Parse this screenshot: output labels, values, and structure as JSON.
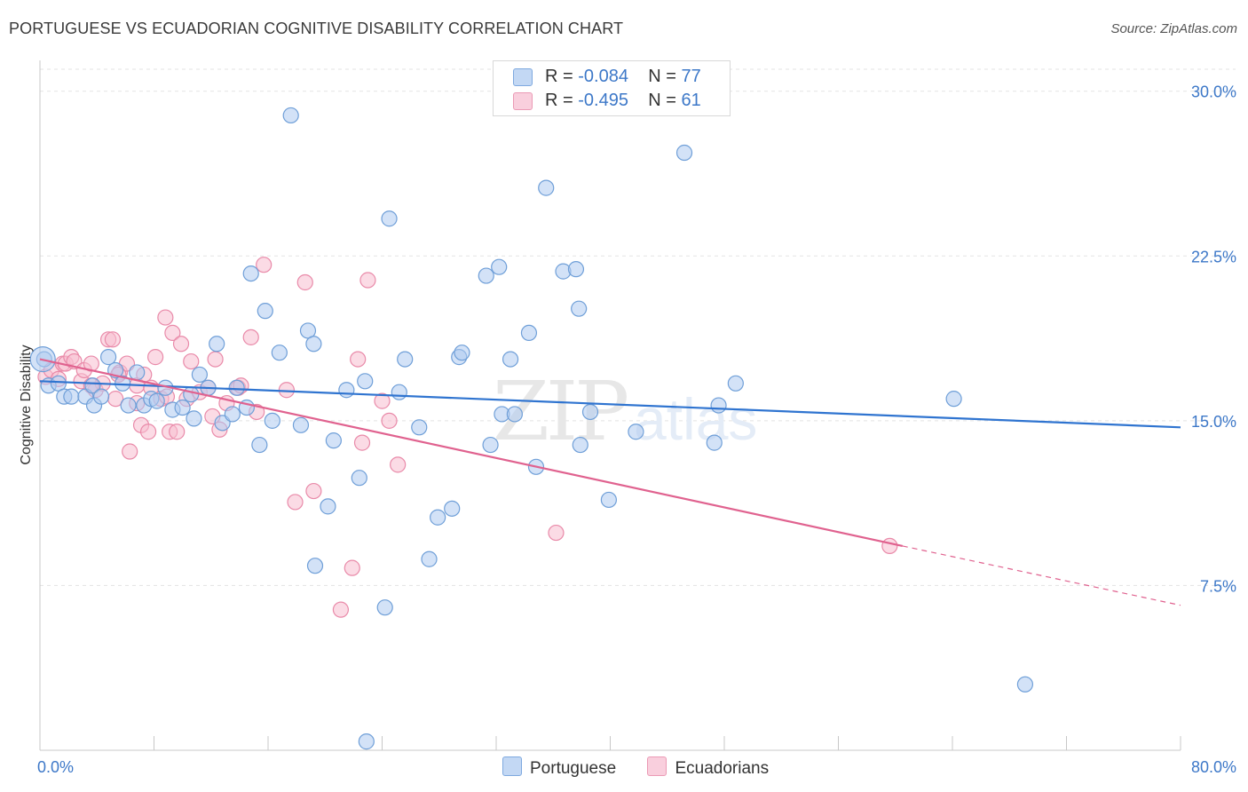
{
  "title": "PORTUGUESE VS ECUADORIAN COGNITIVE DISABILITY CORRELATION CHART",
  "source": "Source: ZipAtlas.com",
  "legend": {
    "rows": [
      {
        "r_label": "R =",
        "r_value": "-0.084",
        "n_label": "N =",
        "n_value": "77"
      },
      {
        "r_label": "R =",
        "r_value": "-0.495",
        "n_label": "N =",
        "n_value": "61"
      }
    ]
  },
  "bottom_legend": [
    "Portuguese",
    "Ecuadorians"
  ],
  "colors": {
    "portuguese_fill": "#aecbf0",
    "portuguese_stroke": "#6f9fd8",
    "portuguese_line": "#2f74d0",
    "ecuadorian_fill": "#f7bdd0",
    "ecuadorian_stroke": "#e98aa9",
    "ecuadorian_line": "#e0628f",
    "tick_text": "#3d78c8",
    "grid": "#e3e3e3"
  },
  "chart_data": {
    "type": "scatter",
    "title": "PORTUGUESE VS ECUADORIAN COGNITIVE DISABILITY CORRELATION CHART",
    "xlabel": "",
    "ylabel": "Cognitive Disability",
    "xlim": [
      0,
      80
    ],
    "ylim": [
      0,
      31
    ],
    "x_tick_labels": [
      "0.0%",
      "80.0%"
    ],
    "y_ticks": [
      7.5,
      15.0,
      22.5,
      30.0
    ],
    "y_tick_labels": [
      "7.5%",
      "15.0%",
      "22.5%",
      "30.0%"
    ],
    "grid": "horizontal dashed",
    "legend_position": "top-center",
    "series": [
      {
        "name": "Portuguese",
        "r": -0.084,
        "n": 77,
        "trend": {
          "x": [
            0,
            80
          ],
          "y": [
            16.8,
            14.7
          ]
        },
        "points": [
          [
            0.3,
            17.8
          ],
          [
            0.6,
            16.6
          ],
          [
            1.3,
            16.7
          ],
          [
            1.7,
            16.1
          ],
          [
            2.2,
            16.1
          ],
          [
            3.2,
            16.1
          ],
          [
            3.7,
            16.6
          ],
          [
            3.8,
            15.7
          ],
          [
            4.3,
            16.1
          ],
          [
            4.8,
            17.9
          ],
          [
            5.3,
            17.3
          ],
          [
            5.8,
            16.7
          ],
          [
            6.2,
            15.7
          ],
          [
            6.8,
            17.2
          ],
          [
            7.3,
            15.7
          ],
          [
            7.8,
            16.0
          ],
          [
            8.2,
            15.9
          ],
          [
            8.8,
            16.5
          ],
          [
            9.3,
            15.5
          ],
          [
            10.0,
            15.6
          ],
          [
            10.6,
            16.2
          ],
          [
            10.8,
            15.1
          ],
          [
            11.2,
            17.1
          ],
          [
            11.8,
            16.5
          ],
          [
            12.4,
            18.5
          ],
          [
            12.8,
            14.9
          ],
          [
            13.5,
            15.3
          ],
          [
            13.8,
            16.5
          ],
          [
            14.5,
            15.6
          ],
          [
            14.8,
            21.7
          ],
          [
            15.4,
            13.9
          ],
          [
            15.8,
            20.0
          ],
          [
            16.3,
            15.0
          ],
          [
            16.8,
            18.1
          ],
          [
            17.6,
            28.9
          ],
          [
            18.3,
            14.8
          ],
          [
            18.8,
            19.1
          ],
          [
            19.2,
            18.5
          ],
          [
            19.3,
            8.4
          ],
          [
            20.2,
            11.1
          ],
          [
            20.6,
            14.1
          ],
          [
            21.5,
            16.4
          ],
          [
            22.4,
            12.4
          ],
          [
            22.8,
            16.8
          ],
          [
            22.9,
            0.4
          ],
          [
            24.2,
            6.5
          ],
          [
            24.5,
            24.2
          ],
          [
            25.2,
            16.3
          ],
          [
            25.6,
            17.8
          ],
          [
            26.6,
            14.7
          ],
          [
            27.3,
            8.7
          ],
          [
            27.9,
            10.6
          ],
          [
            28.9,
            11.0
          ],
          [
            29.4,
            17.9
          ],
          [
            29.6,
            18.1
          ],
          [
            31.3,
            21.6
          ],
          [
            31.6,
            13.9
          ],
          [
            32.2,
            22.0
          ],
          [
            32.4,
            15.3
          ],
          [
            33.0,
            17.8
          ],
          [
            33.3,
            15.3
          ],
          [
            34.3,
            19.0
          ],
          [
            34.8,
            12.9
          ],
          [
            35.5,
            25.6
          ],
          [
            36.7,
            21.8
          ],
          [
            37.8,
            20.1
          ],
          [
            37.9,
            13.9
          ],
          [
            38.6,
            15.4
          ],
          [
            39.9,
            11.4
          ],
          [
            41.8,
            14.5
          ],
          [
            45.2,
            27.2
          ],
          [
            47.3,
            14.0
          ],
          [
            47.6,
            15.7
          ],
          [
            48.8,
            16.7
          ],
          [
            64.1,
            16.0
          ],
          [
            69.1,
            3.0
          ],
          [
            37.6,
            21.9
          ]
        ]
      },
      {
        "name": "Ecuadorians",
        "r": -0.495,
        "n": 61,
        "trend": {
          "x": [
            0,
            60.5
          ],
          "y": [
            17.8,
            9.3
          ]
        },
        "trend_dashed": {
          "x": [
            60.5,
            80
          ],
          "y": [
            9.3,
            6.6
          ]
        },
        "points": [
          [
            0.4,
            17.0
          ],
          [
            0.8,
            17.3
          ],
          [
            1.3,
            16.9
          ],
          [
            1.6,
            17.6
          ],
          [
            1.8,
            17.6
          ],
          [
            2.2,
            17.9
          ],
          [
            2.4,
            17.7
          ],
          [
            2.9,
            16.8
          ],
          [
            3.1,
            17.3
          ],
          [
            3.6,
            17.6
          ],
          [
            3.9,
            16.4
          ],
          [
            4.4,
            16.7
          ],
          [
            4.8,
            18.7
          ],
          [
            5.1,
            18.7
          ],
          [
            5.3,
            16.0
          ],
          [
            5.6,
            17.2
          ],
          [
            6.1,
            17.6
          ],
          [
            6.3,
            13.6
          ],
          [
            6.8,
            16.6
          ],
          [
            6.8,
            15.8
          ],
          [
            7.1,
            14.8
          ],
          [
            7.3,
            17.1
          ],
          [
            7.6,
            14.5
          ],
          [
            7.8,
            16.5
          ],
          [
            8.1,
            17.9
          ],
          [
            8.5,
            16.0
          ],
          [
            8.8,
            19.7
          ],
          [
            9.1,
            14.5
          ],
          [
            9.3,
            19.0
          ],
          [
            9.6,
            14.5
          ],
          [
            9.9,
            18.5
          ],
          [
            10.3,
            16.0
          ],
          [
            10.6,
            17.7
          ],
          [
            11.2,
            16.3
          ],
          [
            11.8,
            16.5
          ],
          [
            12.1,
            15.2
          ],
          [
            12.3,
            17.8
          ],
          [
            12.6,
            14.6
          ],
          [
            13.1,
            15.8
          ],
          [
            13.9,
            16.5
          ],
          [
            14.1,
            16.6
          ],
          [
            14.8,
            18.8
          ],
          [
            15.2,
            15.4
          ],
          [
            15.7,
            22.1
          ],
          [
            17.3,
            16.4
          ],
          [
            17.9,
            11.3
          ],
          [
            18.6,
            21.3
          ],
          [
            19.2,
            11.8
          ],
          [
            21.1,
            6.4
          ],
          [
            21.9,
            8.3
          ],
          [
            22.3,
            17.8
          ],
          [
            22.6,
            14.0
          ],
          [
            23.0,
            21.4
          ],
          [
            24.0,
            15.9
          ],
          [
            24.5,
            15.0
          ],
          [
            25.1,
            13.0
          ],
          [
            36.2,
            9.9
          ],
          [
            59.6,
            9.3
          ],
          [
            5.5,
            17.1
          ],
          [
            3.6,
            16.6
          ],
          [
            8.9,
            16.1
          ]
        ]
      }
    ]
  }
}
